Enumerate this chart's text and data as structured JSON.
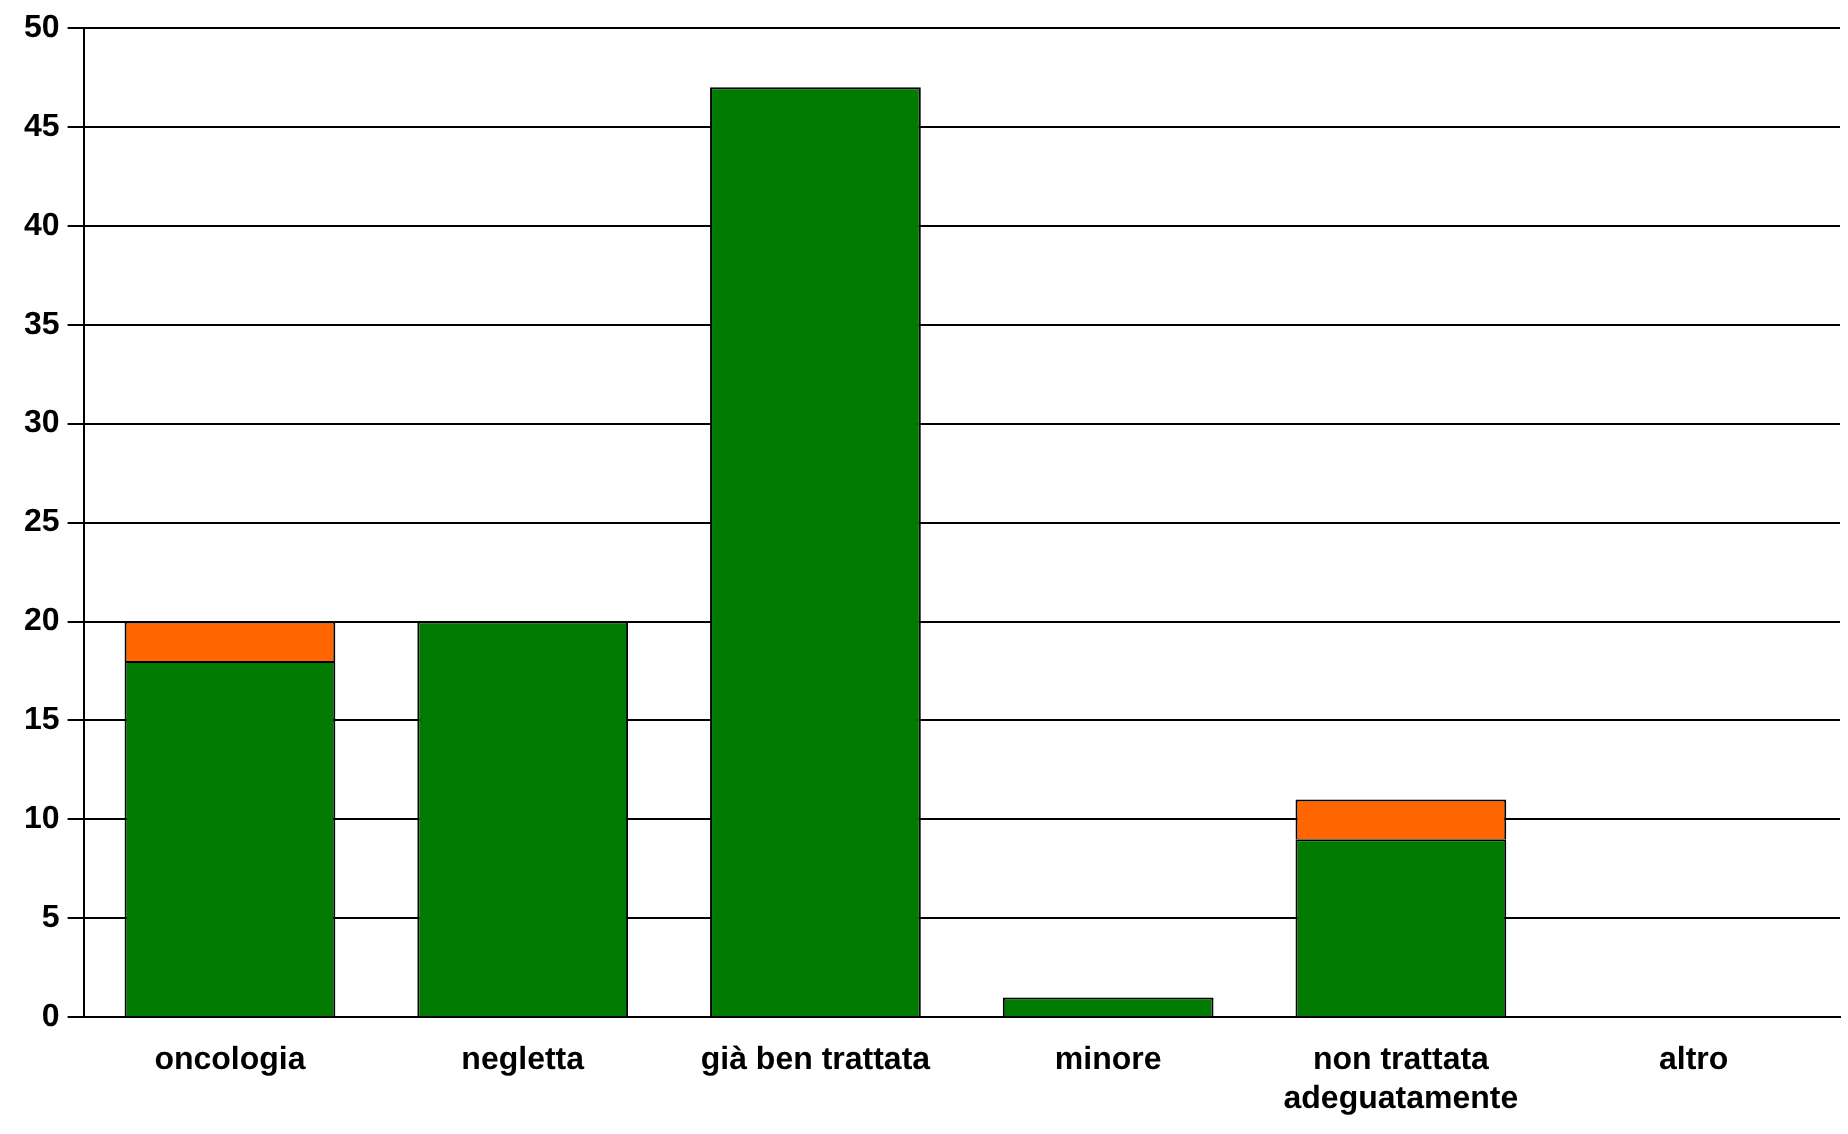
{
  "chart_data": {
    "type": "bar",
    "stacked": true,
    "categories": [
      "oncologia",
      "negletta",
      "già ben trattata",
      "minore",
      "non trattata adeguatamente",
      "altro"
    ],
    "series": [
      {
        "color": "#007a00",
        "values": [
          18,
          20,
          47,
          1,
          9,
          0
        ]
      },
      {
        "color": "#ff6600",
        "values": [
          2,
          0,
          0,
          0,
          2,
          0
        ]
      }
    ],
    "ylim": [
      0,
      50
    ],
    "yticks": [
      0,
      5,
      10,
      15,
      20,
      25,
      30,
      35,
      40,
      45,
      50
    ],
    "grid": "y",
    "legend": false
  }
}
